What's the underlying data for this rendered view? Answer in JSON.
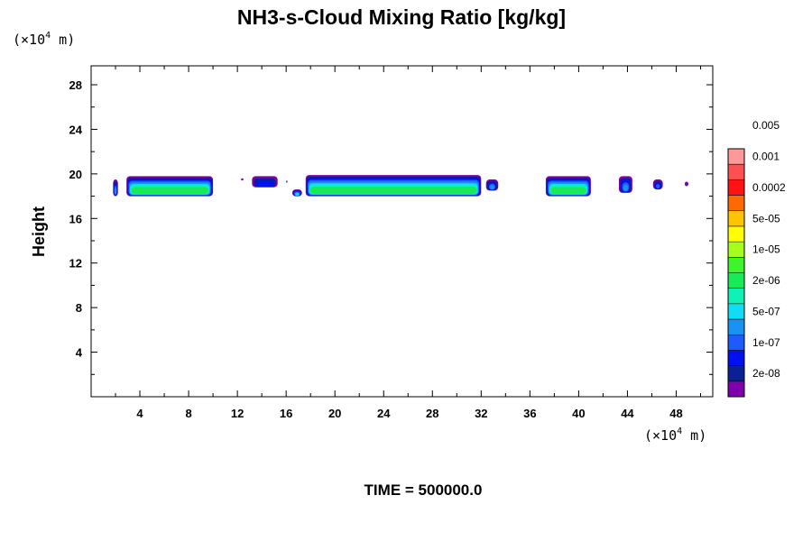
{
  "chart_data": {
    "type": "heatmap",
    "title": "NH3-s-Cloud Mixing Ratio [kg/kg]",
    "ylabel": "Height",
    "xlabel": "",
    "x_unit": {
      "prefix": "(×10",
      "exp": "4",
      "suffix": " m)"
    },
    "y_unit": {
      "prefix": "(×10",
      "exp": "4",
      "suffix": " m)"
    },
    "footer": "TIME = 500000.0",
    "xlim": [
      0,
      51
    ],
    "ylim": [
      0,
      29.7
    ],
    "x_ticks": [
      "4",
      "8",
      "12",
      "16",
      "20",
      "24",
      "28",
      "32",
      "36",
      "40",
      "44",
      "48"
    ],
    "y_ticks": [
      "4",
      "8",
      "12",
      "16",
      "20",
      "24",
      "28"
    ],
    "colorbar": {
      "colors": [
        "#7f00aa",
        "#0b1f96",
        "#0010f0",
        "#1d5cfa",
        "#1993f2",
        "#10dcf6",
        "#10f2b4",
        "#18eb57",
        "#3ef52c",
        "#a6ff1b",
        "#ffff00",
        "#ffc400",
        "#ff6a00",
        "#ff1212",
        "#ff5050",
        "#ff9898"
      ],
      "labels": [
        "2e-08",
        "1e-07",
        "5e-07",
        "2e-06",
        "1e-05",
        "5e-05",
        "0.0002",
        "0.001",
        "0.005"
      ],
      "label_positions": [
        1.5,
        3.5,
        5.5,
        7.5,
        9.5,
        11.5,
        13.5,
        15.5,
        17.5
      ]
    },
    "cloud_regions": [
      {
        "x": [
          1.8,
          2.2
        ],
        "y": [
          18.0,
          19.5
        ],
        "peak_level": 5
      },
      {
        "x": [
          2.9,
          10.0
        ],
        "y": [
          18.0,
          19.8
        ],
        "peak_level": 8
      },
      {
        "x": [
          12.3,
          12.5
        ],
        "y": [
          19.4,
          19.6
        ],
        "peak_level": 1
      },
      {
        "x": [
          13.2,
          15.3
        ],
        "y": [
          18.8,
          19.8
        ],
        "peak_level": 3
      },
      {
        "x": [
          16.0,
          16.1
        ],
        "y": [
          19.2,
          19.4
        ],
        "peak_level": 1
      },
      {
        "x": [
          16.5,
          17.3
        ],
        "y": [
          18.0,
          18.6
        ],
        "peak_level": 6
      },
      {
        "x": [
          17.6,
          32.0
        ],
        "y": [
          18.0,
          19.9
        ],
        "peak_level": 8
      },
      {
        "x": [
          32.4,
          33.4
        ],
        "y": [
          18.5,
          19.5
        ],
        "peak_level": 5
      },
      {
        "x": [
          37.3,
          41.0
        ],
        "y": [
          18.0,
          19.8
        ],
        "peak_level": 8
      },
      {
        "x": [
          43.3,
          44.4
        ],
        "y": [
          18.3,
          19.8
        ],
        "peak_level": 5
      },
      {
        "x": [
          46.1,
          46.9
        ],
        "y": [
          18.6,
          19.5
        ],
        "peak_level": 4
      },
      {
        "x": [
          48.7,
          49.0
        ],
        "y": [
          18.9,
          19.3
        ],
        "peak_level": 1
      }
    ]
  }
}
